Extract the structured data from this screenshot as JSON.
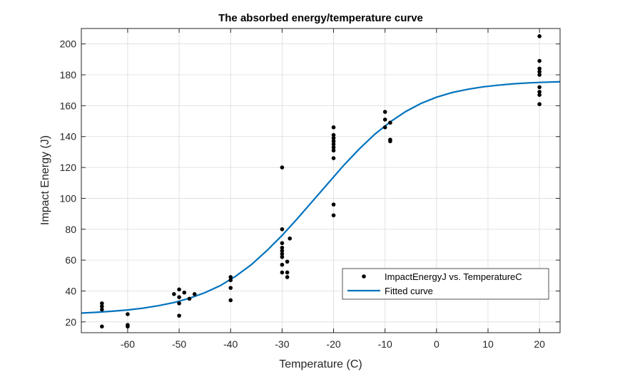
{
  "chart_data": {
    "type": "scatter",
    "title": "The absorbed energy/temperature curve",
    "xlabel": "Temperature (C)",
    "ylabel": "Impact Energy (J)",
    "xlim": [
      -69,
      24
    ],
    "ylim": [
      13,
      210
    ],
    "xticks": [
      -60,
      -50,
      -40,
      -30,
      -20,
      -10,
      0,
      10,
      20
    ],
    "yticks": [
      20,
      40,
      60,
      80,
      100,
      120,
      140,
      160,
      180,
      200
    ],
    "grid": true,
    "legend_position": "bottom-right",
    "colors": {
      "points": "#000000",
      "fit": "#0072BD",
      "grid": "#dcdcdc",
      "axis": "#262626"
    },
    "series": [
      {
        "name": "ImpactEnergyJ vs. TemperatureC",
        "kind": "scatter",
        "points": [
          [
            -65,
            17
          ],
          [
            -65,
            28
          ],
          [
            -65,
            30
          ],
          [
            -65,
            32
          ],
          [
            -60,
            17
          ],
          [
            -60,
            18
          ],
          [
            -60,
            25
          ],
          [
            -51,
            38
          ],
          [
            -50,
            24
          ],
          [
            -50,
            32
          ],
          [
            -50,
            36
          ],
          [
            -50,
            41
          ],
          [
            -49,
            39
          ],
          [
            -48,
            35
          ],
          [
            -47,
            38
          ],
          [
            -40,
            34
          ],
          [
            -40,
            42
          ],
          [
            -40,
            47
          ],
          [
            -40,
            49
          ],
          [
            -30,
            120
          ],
          [
            -30,
            80
          ],
          [
            -30,
            71
          ],
          [
            -30,
            68
          ],
          [
            -30,
            66
          ],
          [
            -30,
            64
          ],
          [
            -30,
            62
          ],
          [
            -30,
            57
          ],
          [
            -30,
            52
          ],
          [
            -29,
            59
          ],
          [
            -29,
            49
          ],
          [
            -29,
            52
          ],
          [
            -28.5,
            74
          ],
          [
            -20,
            146
          ],
          [
            -20,
            141
          ],
          [
            -20,
            139
          ],
          [
            -20,
            137
          ],
          [
            -20,
            135
          ],
          [
            -20,
            133
          ],
          [
            -20,
            131
          ],
          [
            -20,
            126
          ],
          [
            -20,
            96
          ],
          [
            -20,
            89
          ],
          [
            -10,
            156
          ],
          [
            -10,
            151
          ],
          [
            -10,
            146
          ],
          [
            -9,
            149
          ],
          [
            -9,
            138
          ],
          [
            -9,
            137
          ],
          [
            20,
            205
          ],
          [
            20,
            189
          ],
          [
            20,
            184
          ],
          [
            20,
            182
          ],
          [
            20,
            180
          ],
          [
            20,
            172
          ],
          [
            20,
            169
          ],
          [
            20,
            167
          ],
          [
            20,
            161
          ]
        ]
      },
      {
        "name": "Fitted curve",
        "kind": "line",
        "points": [
          [
            -69,
            25.7
          ],
          [
            -66,
            26.2
          ],
          [
            -63,
            26.9
          ],
          [
            -60,
            27.7
          ],
          [
            -57,
            28.9
          ],
          [
            -54,
            30.5
          ],
          [
            -51,
            32.5
          ],
          [
            -48,
            35.3
          ],
          [
            -45,
            38.9
          ],
          [
            -42,
            43.5
          ],
          [
            -39,
            49.6
          ],
          [
            -36,
            57.0
          ],
          [
            -33,
            66.0
          ],
          [
            -30,
            76.0
          ],
          [
            -27,
            87.0
          ],
          [
            -24,
            98.5
          ],
          [
            -21,
            110.0
          ],
          [
            -18,
            121.5
          ],
          [
            -15,
            132.0
          ],
          [
            -12,
            141.5
          ],
          [
            -9,
            149.5
          ],
          [
            -6,
            156.2
          ],
          [
            -3,
            161.5
          ],
          [
            0,
            165.5
          ],
          [
            3,
            168.5
          ],
          [
            6,
            170.6
          ],
          [
            9,
            172.2
          ],
          [
            12,
            173.3
          ],
          [
            15,
            174.2
          ],
          [
            18,
            174.8
          ],
          [
            21,
            175.2
          ],
          [
            24,
            175.5
          ]
        ]
      }
    ]
  }
}
